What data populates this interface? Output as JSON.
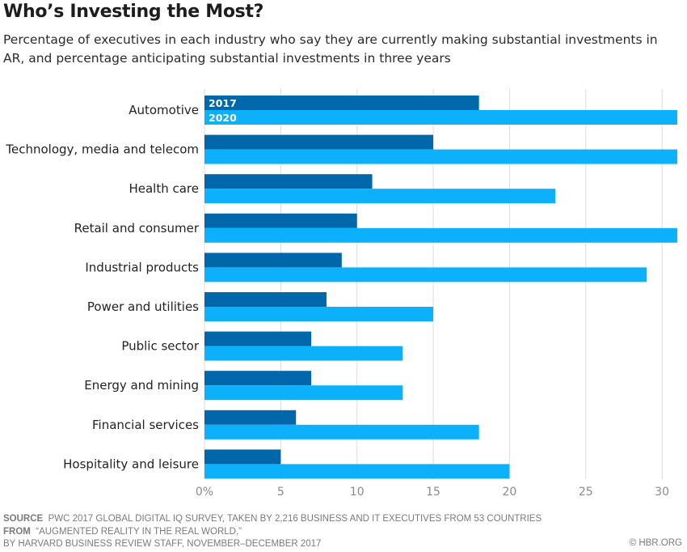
{
  "header": {
    "title": "Who’s Investing the Most?",
    "subtitle": "Percentage of executives in each industry who say they are currently making substantial investments in AR, and percentage anticipating substantial investments in three years"
  },
  "footer": {
    "source_label": "SOURCE",
    "source_text": "PWC 2017 GLOBAL DIGITAL IQ SURVEY, TAKEN BY 2,216 BUSINESS AND IT EXECUTIVES FROM 53 COUNTRIES",
    "from_label": "FROM",
    "from_text": "“AUGMENTED REALITY IN THE REAL WORLD,”",
    "byline": "BY HARVARD BUSINESS REVIEW STAFF, NOVEMBER–DECEMBER 2017",
    "credit": "© HBR.ORG"
  },
  "colors": {
    "series_2017": "#0068aa",
    "series_2020": "#0db0fb",
    "grid": "#dddddd"
  },
  "chart_data": {
    "type": "bar",
    "orientation": "horizontal",
    "title": "Who’s Investing the Most?",
    "xlabel": "",
    "ylabel": "",
    "xlim": [
      0,
      31
    ],
    "x_ticks": [
      0,
      5,
      10,
      15,
      20,
      25,
      30
    ],
    "x_tick_labels": [
      "0%",
      "5",
      "10",
      "15",
      "20",
      "25",
      "30"
    ],
    "grid": true,
    "legend": "inline-first-bars",
    "categories": [
      "Automotive",
      "Technology, media and telecom",
      "Health care",
      "Retail and consumer",
      "Industrial products",
      "Power and utilities",
      "Public sector",
      "Energy and mining",
      "Financial services",
      "Hospitality and leisure"
    ],
    "series": [
      {
        "name": "2017",
        "values": [
          18,
          15,
          11,
          10,
          9,
          8,
          7,
          7,
          6,
          5
        ]
      },
      {
        "name": "2020",
        "values": [
          31,
          31,
          23,
          31,
          29,
          15,
          13,
          13,
          18,
          20
        ]
      }
    ]
  }
}
